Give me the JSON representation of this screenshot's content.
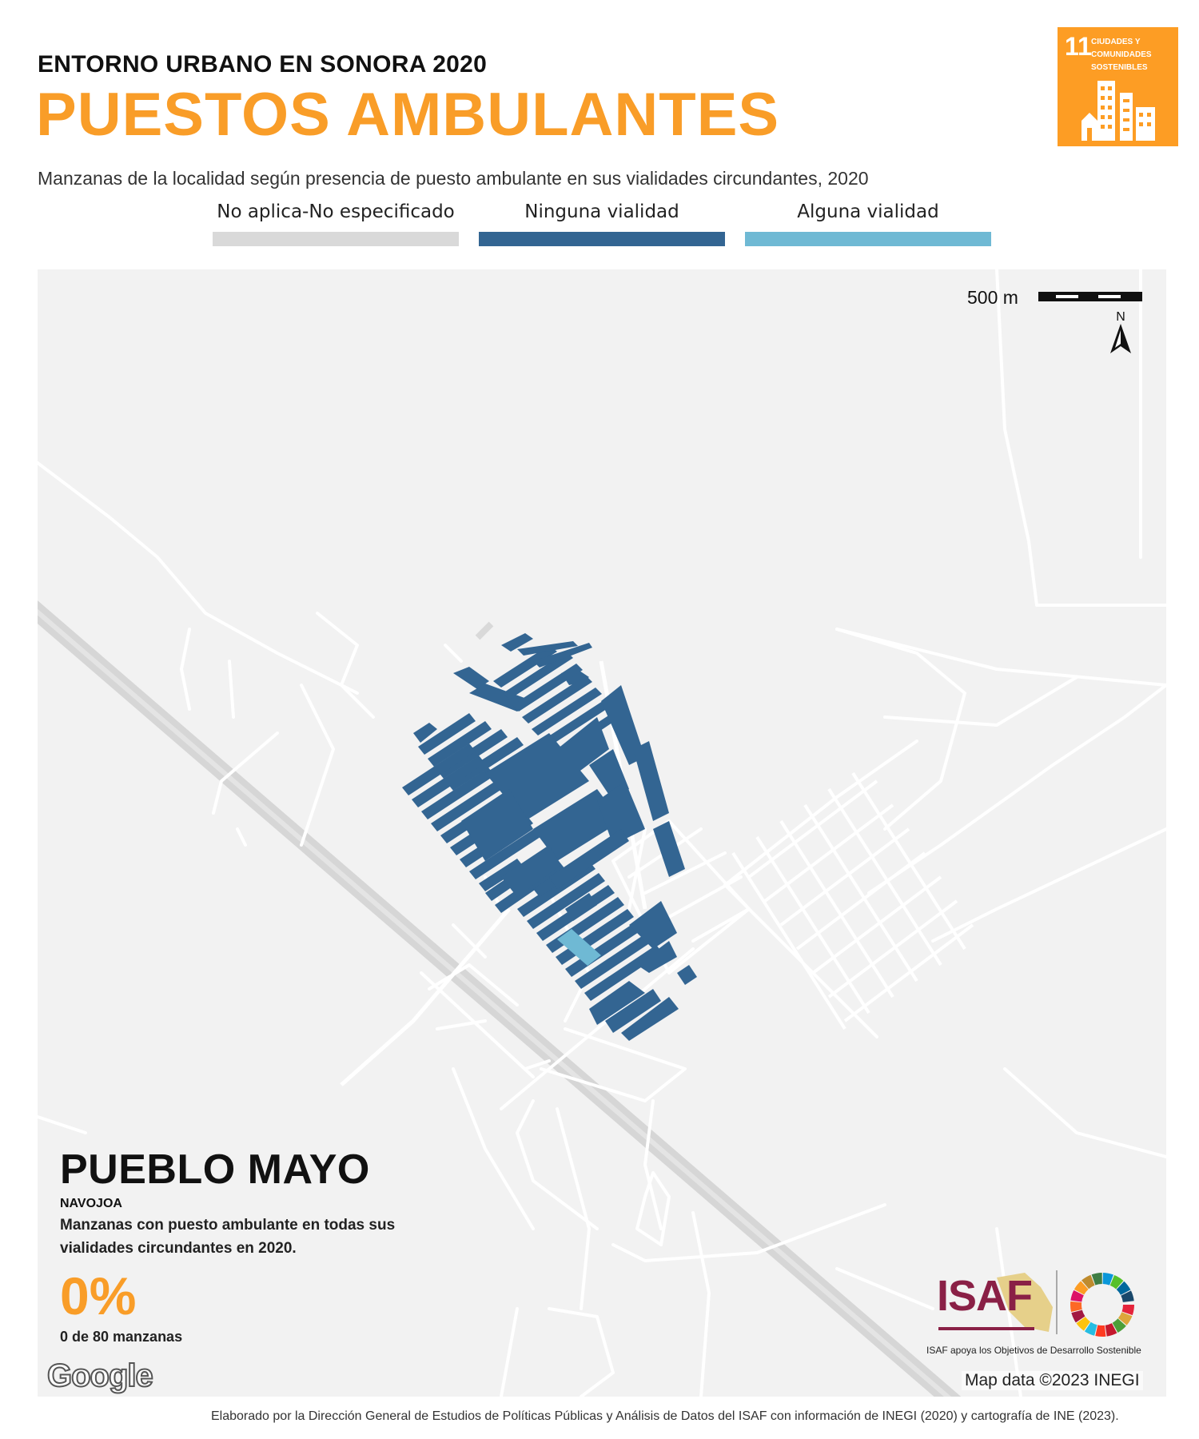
{
  "header": {
    "supertitle": "ENTORNO URBANO EN SONORA 2020",
    "title": "PUESTOS AMBULANTES"
  },
  "sdg_badge": {
    "number": "11",
    "text": "CIUDADES Y COMUNIDADES SOSTENIBLES",
    "color": "#FD9D24"
  },
  "subtitle": "Manzanas de la localidad según presencia de puesto ambulante en sus vialidades circundantes, 2020",
  "legend": [
    {
      "label": "No aplica-No especificado",
      "color": "#D9D9D9"
    },
    {
      "label": "Ninguna vialidad",
      "color": "#336592"
    },
    {
      "label": "Alguna vialidad",
      "color": "#6FB9D4"
    }
  ],
  "map": {
    "background": "#F2F2F2",
    "road_color": "#FFFFFF",
    "highway_color": "#D9D9D9",
    "scale_label": "500 m",
    "north_label": "N",
    "google_label": "Google",
    "credit": "Map data ©2023 INEGI"
  },
  "locality": {
    "name": "PUEBLO MAYO",
    "municipality": "NAVOJOA",
    "description": "Manzanas con puesto ambulante en todas sus vialidades circundantes en 2020.",
    "percent": "0%",
    "count": "0 de 80 manzanas"
  },
  "logos": {
    "isaf": "ISAF",
    "caption": "ISAF apoya los Objetivos de Desarrollo Sostenible"
  },
  "footer": "Elaborado por la Dirección General de Estudios de Políticas Públicas y Análisis de Datos del ISAF con información de INEGI (2020) y cartografía de INE (2023)."
}
